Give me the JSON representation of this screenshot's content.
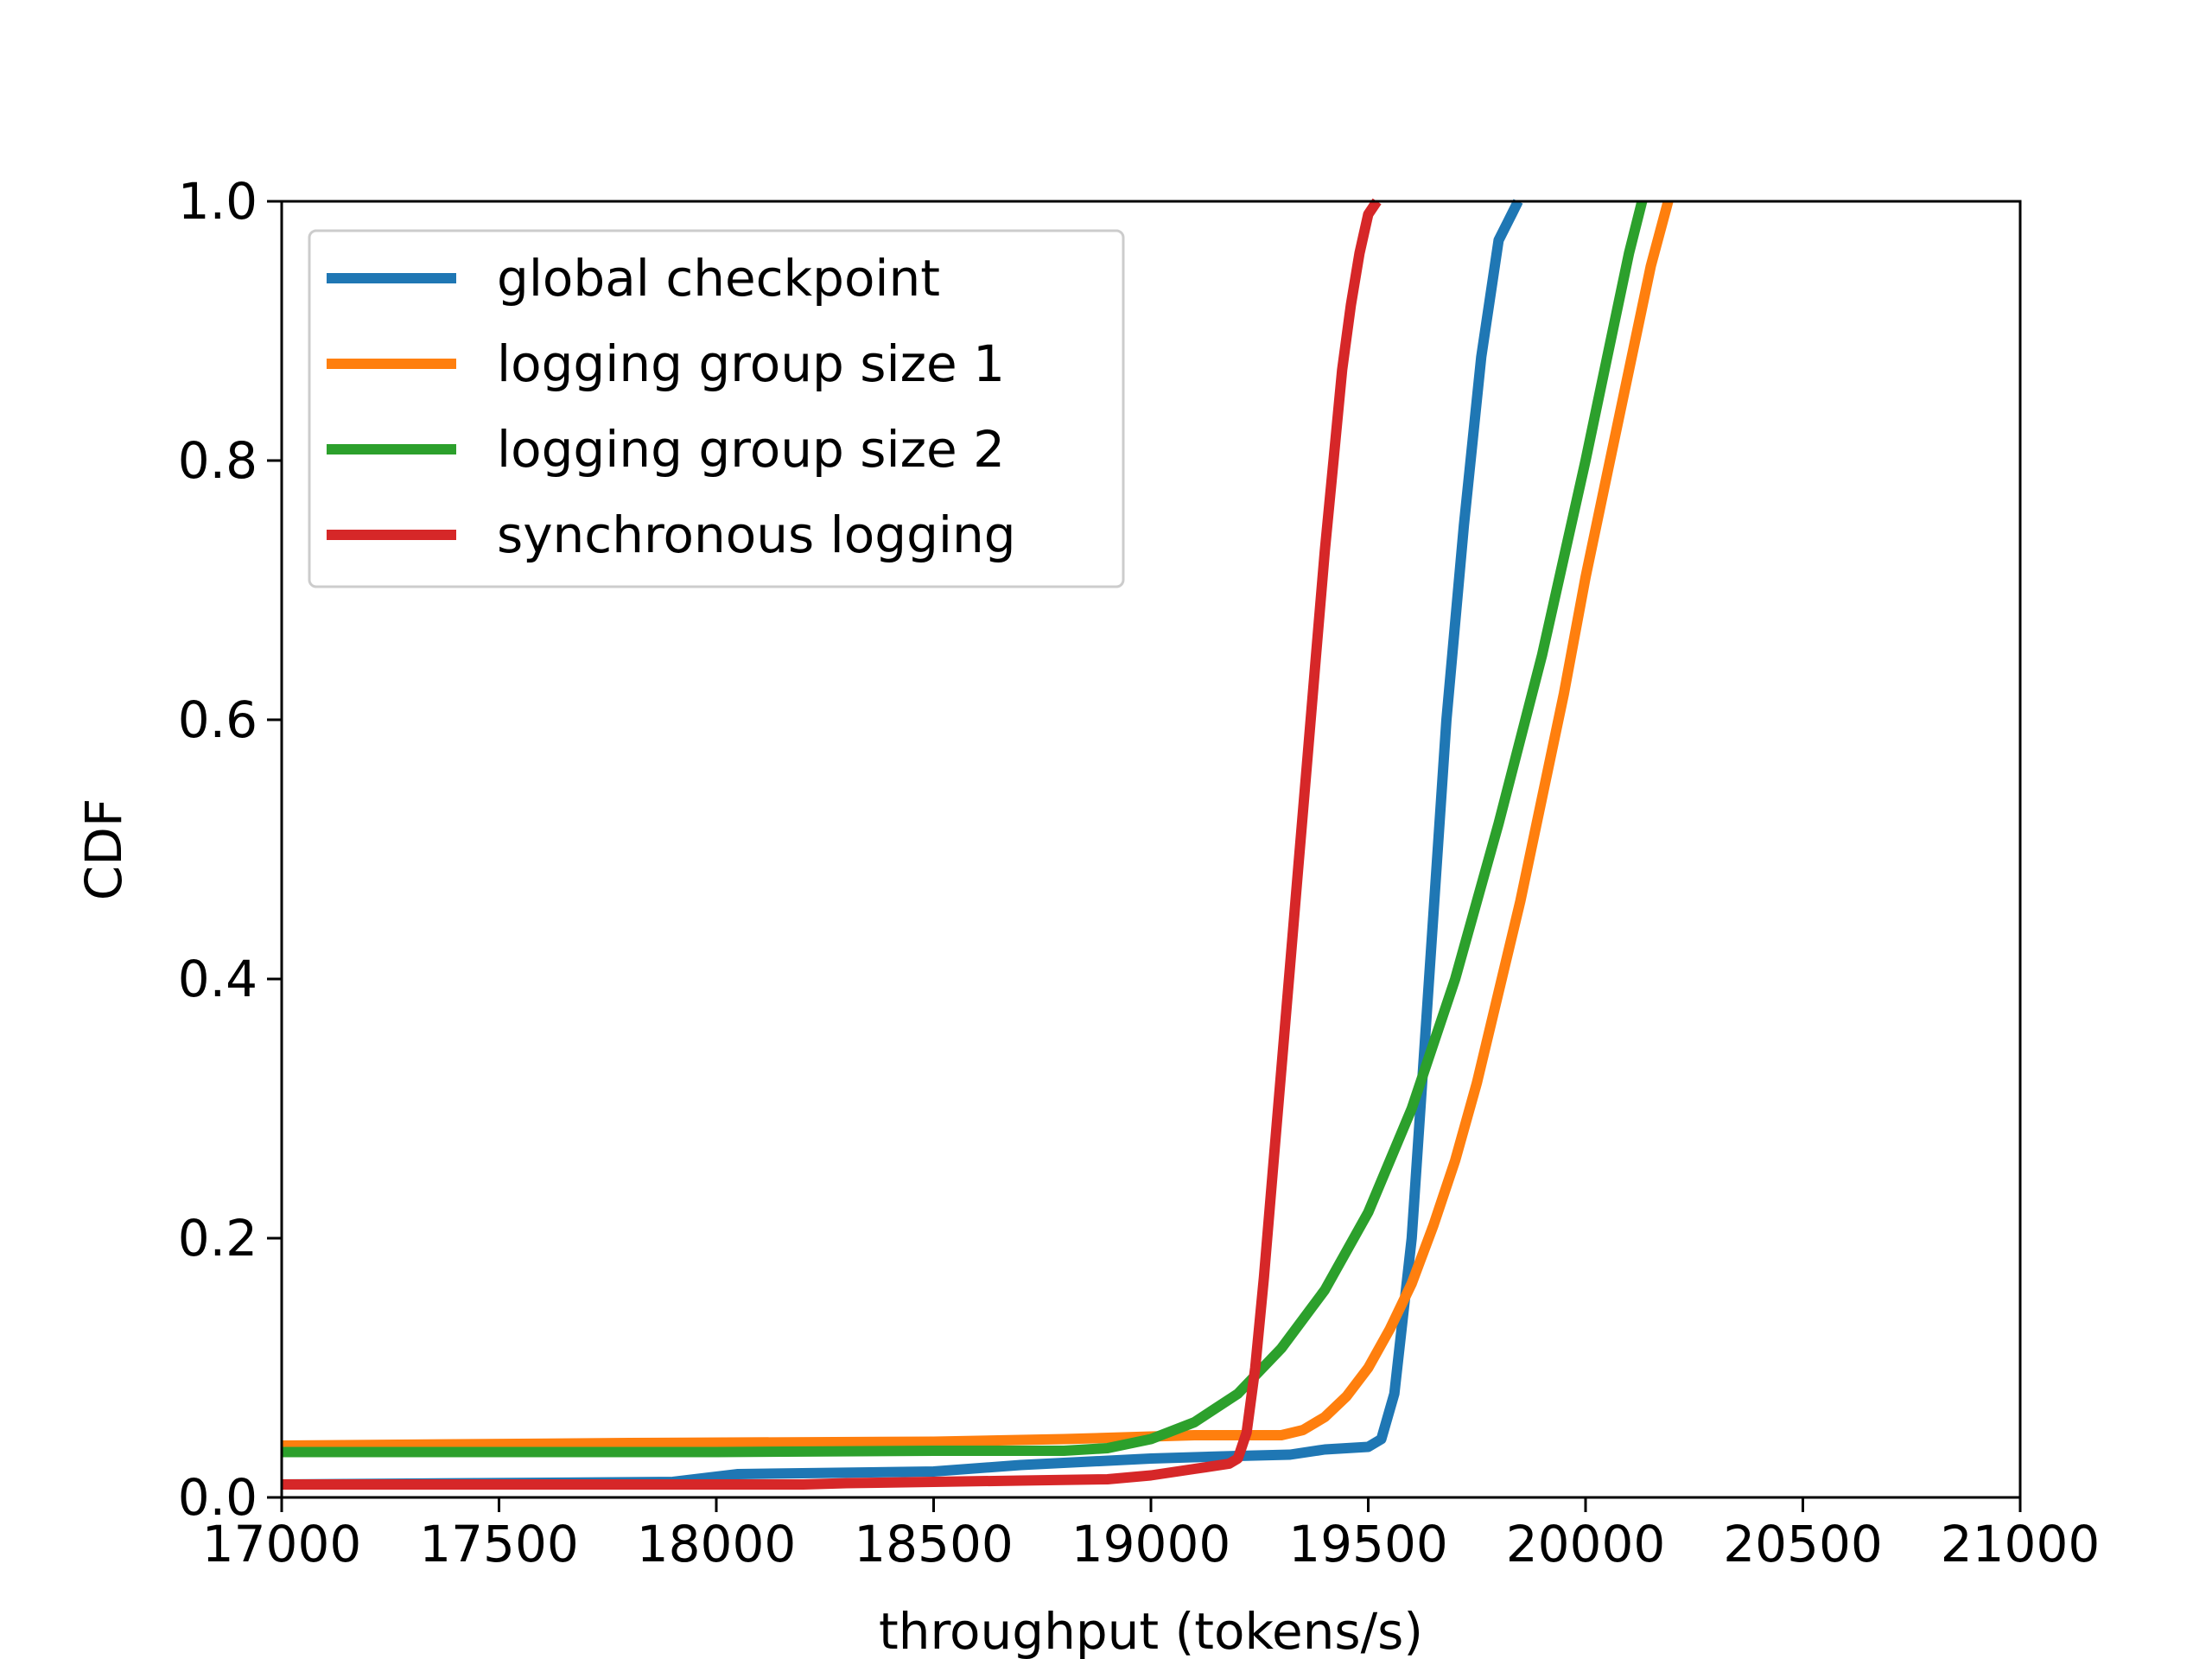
{
  "chart_data": {
    "type": "line",
    "title": "",
    "xlabel": "throughput (tokens/s)",
    "ylabel": "CDF",
    "xlim": [
      17000,
      21000
    ],
    "ylim": [
      0.0,
      1.0
    ],
    "xticks": [
      17000,
      17500,
      18000,
      18500,
      19000,
      19500,
      20000,
      20500,
      21000
    ],
    "yticks": [
      0.0,
      0.2,
      0.4,
      0.6,
      0.8,
      1.0
    ],
    "xtick_labels": [
      "17000",
      "17500",
      "18000",
      "18500",
      "19000",
      "19500",
      "20000",
      "20500",
      "21000"
    ],
    "ytick_labels": [
      "0.0",
      "0.2",
      "0.4",
      "0.6",
      "0.8",
      "1.0"
    ],
    "grid": false,
    "legend_position": "top-left",
    "series": [
      {
        "name": "global checkpoint",
        "color": "#1f77b4",
        "x": [
          17000,
          17900,
          18050,
          18500,
          18700,
          19000,
          19200,
          19320,
          19400,
          19500,
          19530,
          19560,
          19600,
          19640,
          19680,
          19720,
          19760,
          19800,
          19830,
          19845
        ],
        "y": [
          0.01,
          0.012,
          0.018,
          0.02,
          0.025,
          0.03,
          0.032,
          0.033,
          0.037,
          0.039,
          0.045,
          0.08,
          0.2,
          0.4,
          0.6,
          0.75,
          0.88,
          0.97,
          0.99,
          1.0
        ]
      },
      {
        "name": "logging group size 1",
        "color": "#ff7f0e",
        "x": [
          17000,
          17800,
          18500,
          18800,
          19000,
          19100,
          19200,
          19300,
          19350,
          19400,
          19450,
          19500,
          19550,
          19600,
          19650,
          19700,
          19750,
          19800,
          19850,
          19900,
          19950,
          20000,
          20050,
          20100,
          20150,
          20190
        ],
        "y": [
          0.04,
          0.042,
          0.043,
          0.045,
          0.047,
          0.048,
          0.048,
          0.048,
          0.052,
          0.062,
          0.078,
          0.1,
          0.13,
          0.165,
          0.21,
          0.26,
          0.32,
          0.39,
          0.46,
          0.54,
          0.62,
          0.71,
          0.79,
          0.87,
          0.95,
          1.0
        ]
      },
      {
        "name": "logging group size 2",
        "color": "#2ca02c",
        "x": [
          17000,
          17500,
          18000,
          18500,
          18800,
          18900,
          19000,
          19100,
          19200,
          19300,
          19400,
          19500,
          19600,
          19700,
          19800,
          19900,
          20000,
          20050,
          20100,
          20130
        ],
        "y": [
          0.035,
          0.035,
          0.035,
          0.036,
          0.036,
          0.038,
          0.045,
          0.058,
          0.08,
          0.115,
          0.16,
          0.22,
          0.3,
          0.4,
          0.52,
          0.65,
          0.8,
          0.88,
          0.96,
          1.0
        ]
      },
      {
        "name": "synchronous logging",
        "color": "#d62728",
        "x": [
          17000,
          18200,
          18300,
          18500,
          18700,
          18900,
          19000,
          19100,
          19180,
          19200,
          19220,
          19240,
          19260,
          19280,
          19300,
          19320,
          19340,
          19360,
          19380,
          19400,
          19420,
          19440,
          19460,
          19480,
          19500,
          19520
        ],
        "y": [
          0.01,
          0.01,
          0.011,
          0.012,
          0.013,
          0.014,
          0.017,
          0.022,
          0.026,
          0.03,
          0.05,
          0.1,
          0.17,
          0.25,
          0.33,
          0.41,
          0.49,
          0.57,
          0.65,
          0.73,
          0.8,
          0.87,
          0.92,
          0.96,
          0.99,
          1.0
        ]
      }
    ]
  }
}
